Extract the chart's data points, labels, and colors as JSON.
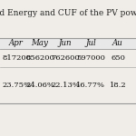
{
  "title": "ed Energy and CUF of the PV powe",
  "columns": [
    "Apr",
    "May",
    "Jun",
    "Jul",
    "Au"
  ],
  "row1_values": [
    "817200",
    "856200",
    "762600",
    "597000",
    "650"
  ],
  "row2_values": [
    "23.75%",
    "24.06%",
    "22.13%",
    "16.77%",
    "18.2"
  ],
  "header_bg": "#e8e8e8",
  "bg_color": "#f0ede8",
  "title_fontsize": 6.5,
  "header_fontsize": 6.2,
  "cell_fontsize": 6.0,
  "title_color": "#222222",
  "cell_color": "#111111",
  "line_color": "#999999"
}
